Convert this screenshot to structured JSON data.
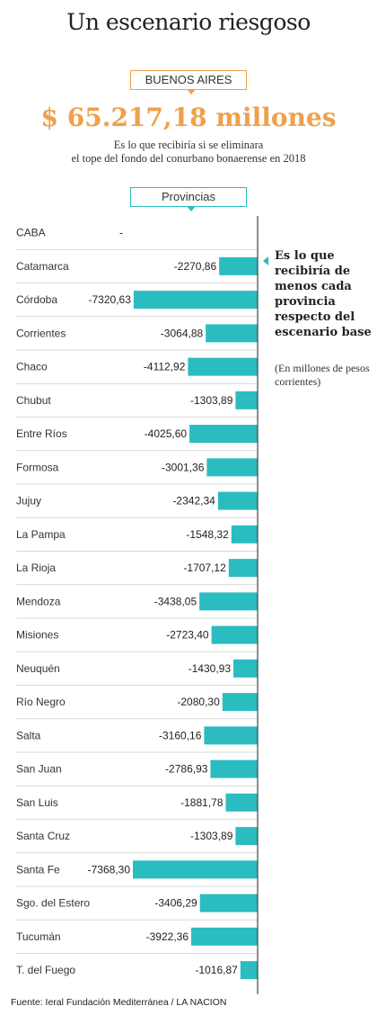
{
  "header": {
    "title": "Un escenario riesgoso",
    "badge": "BUENOS AIRES",
    "amount": "$ 65.217,18 millones",
    "subtitle_line1": "Es lo que recibiría si se eliminara",
    "subtitle_line2": "el tope del fondo del conurbano bonaerense en 2018",
    "section_label": "Provincias"
  },
  "note": {
    "title": "Es lo que recibiría de menos cada provincia respecto del escenario base",
    "subtitle": "(En millones de pesos corrientes)"
  },
  "source": "Fuente: Ieral Fundación Mediterránea / LA NACION",
  "colors": {
    "bar": "#2bbcc0",
    "accent": "#f0a04b",
    "divider": "#cccccc",
    "axis": "#444444"
  },
  "chart_data": {
    "type": "bar",
    "orientation": "horizontal",
    "categories": [
      "CABA",
      "Catamarca",
      "Córdoba",
      "Corrientes",
      "Chaco",
      "Chubut",
      "Entre Ríos",
      "Formosa",
      "Jujuy",
      "La Pampa",
      "La Rioja",
      "Mendoza",
      "Misiones",
      "Neuquén",
      "Río Negro",
      "Salta",
      "San Juan",
      "San Luis",
      "Santa Cruz",
      "Santa Fe",
      "Sgo. del Estero",
      "Tucumán",
      "T. del Fuego"
    ],
    "values": [
      null,
      -2270.86,
      -7320.63,
      -3064.88,
      -4112.92,
      -1303.89,
      -4025.6,
      -3001.36,
      -2342.34,
      -1548.32,
      -1707.12,
      -3438.05,
      -2723.4,
      -1430.93,
      -2080.3,
      -3160.16,
      -2786.93,
      -1881.78,
      -1303.89,
      -7368.3,
      -3406.29,
      -3922.36,
      -1016.87
    ],
    "value_labels": [
      "-",
      "-2270,86",
      "-7320,63",
      "-3064,88",
      "-4112,92",
      "-1303,89",
      "-4025,60",
      "-3001,36",
      "-2342,34",
      "-1548,32",
      "-1707,12",
      "-3438,05",
      "-2723,40",
      "-1430,93",
      "-2080,30",
      "-3160,16",
      "-2786,93",
      "-1881,78",
      "-1303,89",
      "-7368,30",
      "-3406,29",
      "-3922,36",
      "-1016,87"
    ],
    "xlim": [
      -7368.3,
      0
    ],
    "title": "",
    "xlabel": "",
    "ylabel": ""
  }
}
